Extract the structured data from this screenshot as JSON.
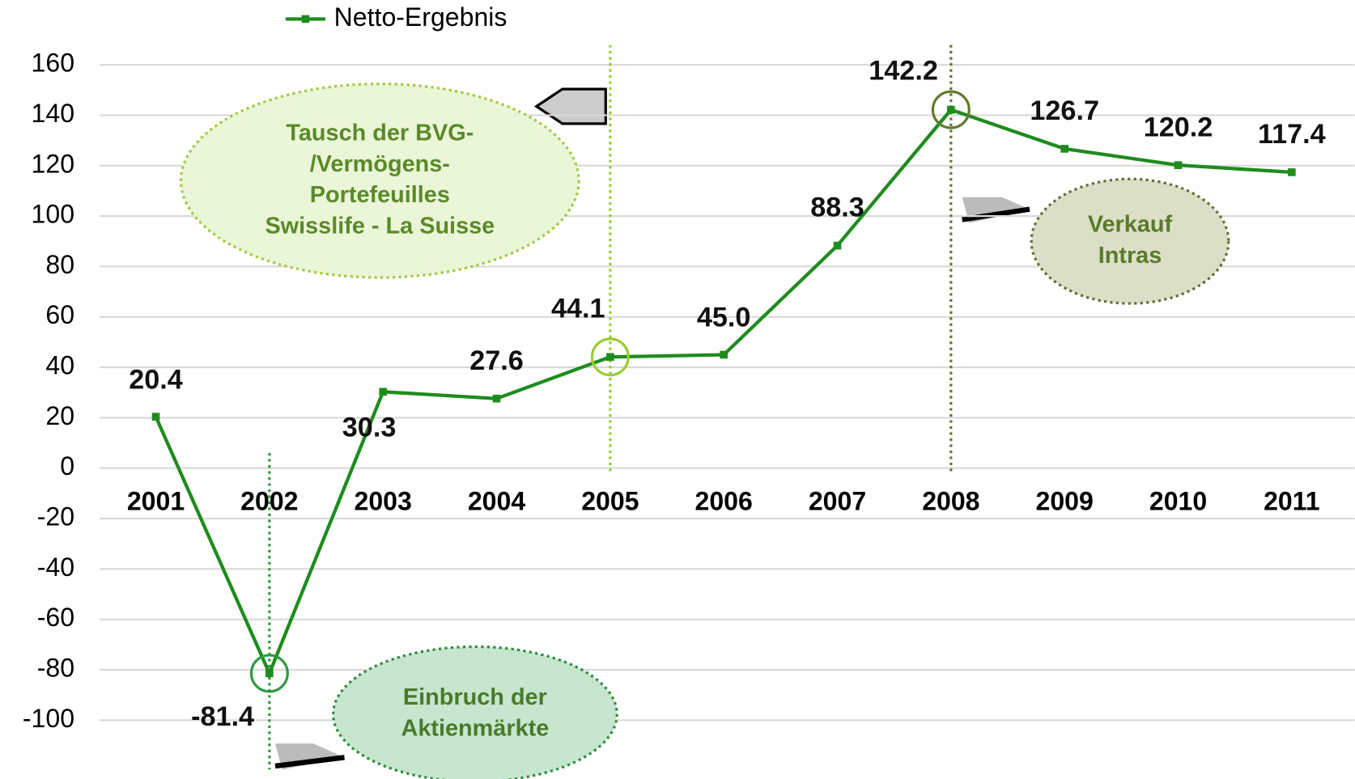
{
  "chart_data": {
    "type": "line",
    "categories": [
      "2001",
      "2002",
      "2003",
      "2004",
      "2005",
      "2006",
      "2007",
      "2008",
      "2009",
      "2010",
      "2011"
    ],
    "series": [
      {
        "name": "Netto-Ergebnis",
        "color": "#1e8c1e",
        "values": [
          20.4,
          -81.4,
          30.3,
          27.6,
          44.1,
          45.0,
          88.3,
          142.2,
          126.7,
          120.2,
          117.4
        ],
        "value_labels": [
          "20.4",
          "-81.4",
          "30.3",
          "27.6",
          "44.1",
          "45.0",
          "88.3",
          "142.2",
          "126.7",
          "120.2",
          "117.4"
        ]
      }
    ],
    "ylim": [
      -100,
      160
    ],
    "yticks": [
      -100,
      -80,
      -60,
      -40,
      -20,
      0,
      20,
      40,
      60,
      80,
      100,
      120,
      140,
      160
    ],
    "grid": true,
    "legend": "top",
    "annotations": [
      {
        "lines": [
          "Tausch der BVG-",
          "/Vermögens-",
          "Portefeuilles",
          "Swisslife - La Suisse"
        ]
      },
      {
        "lines": [
          "Einbruch der",
          "Aktienmärkte"
        ]
      },
      {
        "lines": [
          "Verkauf",
          "Intras"
        ]
      }
    ]
  }
}
